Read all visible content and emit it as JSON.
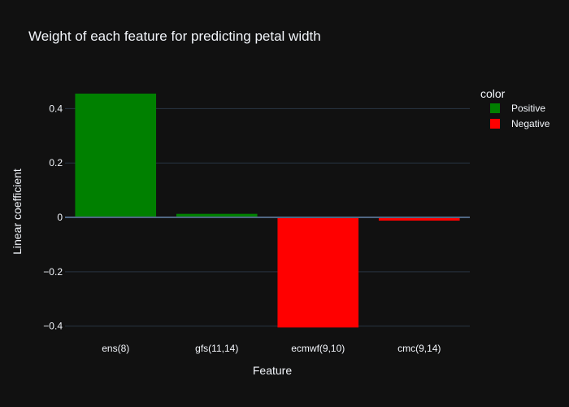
{
  "chart_data": {
    "type": "bar",
    "title": "Weight of each feature for predicting petal width",
    "xlabel": "Feature",
    "ylabel": "Linear coefficient",
    "categories": [
      "ens(8)",
      "gfs(11,14)",
      "ecmwf(9,10)",
      "cmc(9,14)"
    ],
    "values": [
      0.455,
      0.013,
      -0.405,
      -0.012
    ],
    "colors": [
      "Positive",
      "Positive",
      "Negative",
      "Negative"
    ],
    "ylim": [
      -0.41,
      0.5
    ],
    "yticks": [
      0.4,
      0.2,
      0,
      -0.2,
      -0.4
    ],
    "ytick_labels": [
      "0.4",
      "0.2",
      "0",
      "−0.2",
      "−0.4"
    ],
    "grid": true,
    "legend": {
      "title": "color",
      "placement": "top-right",
      "entries": [
        {
          "name": "Positive",
          "color": "#008000"
        },
        {
          "name": "Negative",
          "color": "#ff0000"
        }
      ]
    }
  },
  "theme": {
    "background": "#111111",
    "grid_color": "#283442",
    "text_color": "#f2f5fa"
  }
}
